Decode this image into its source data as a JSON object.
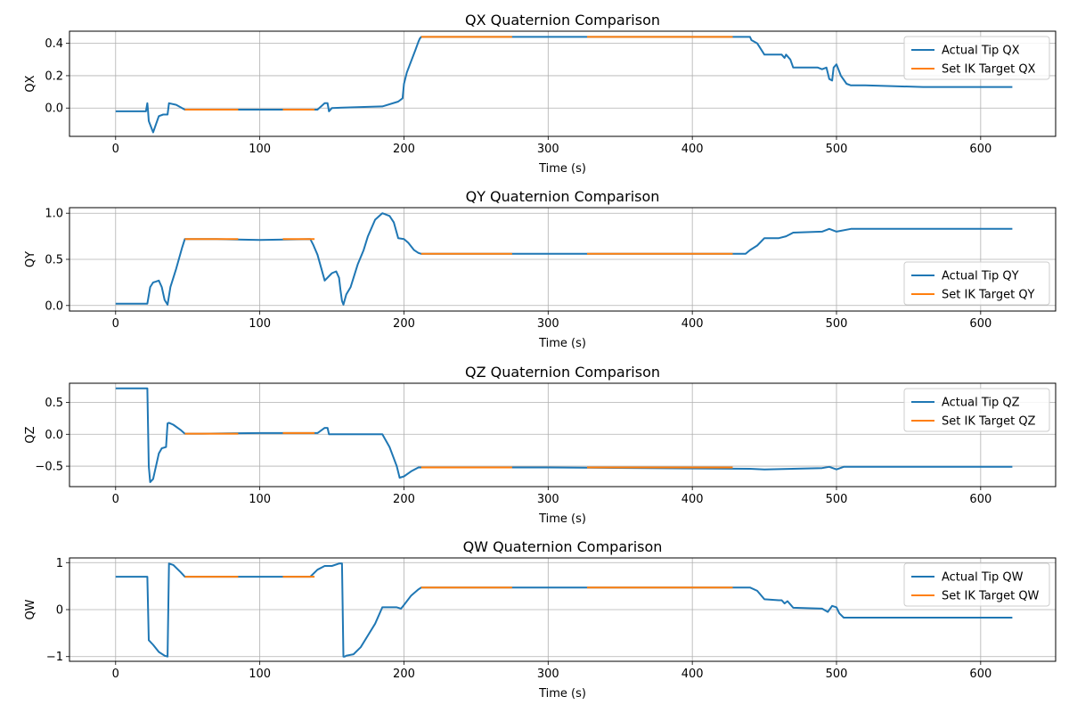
{
  "colors": {
    "actual": "#1f77b4",
    "target": "#ff7f0e",
    "grid": "#b0b0b0",
    "axis": "#000000"
  },
  "chart_data": [
    {
      "type": "line",
      "title": "QX Quaternion Comparison",
      "xlabel": "Time (s)",
      "ylabel": "QX",
      "xlim": [
        -32,
        652
      ],
      "ylim": [
        -0.175,
        0.475
      ],
      "xticks": [
        0,
        100,
        200,
        300,
        400,
        500,
        600
      ],
      "yticks": [
        0.0,
        0.2,
        0.4
      ],
      "ytick_labels": [
        "0.0",
        "0.2",
        "0.4"
      ],
      "grid": true,
      "legend_position": "top-right",
      "series": [
        {
          "name": "Actual Tip QX",
          "x": [
            0,
            21,
            22,
            22.5,
            23,
            26,
            30,
            33,
            36,
            37,
            42,
            48,
            60,
            100,
            140,
            145,
            147,
            148,
            150,
            185,
            196,
            199,
            200,
            202,
            208,
            210,
            211,
            212,
            260,
            300,
            440,
            441,
            445,
            450,
            462,
            464,
            465,
            468,
            470,
            487,
            490,
            493,
            495,
            497,
            498,
            500,
            503,
            507,
            510,
            520,
            560,
            622
          ],
          "y": [
            -0.02,
            -0.02,
            0.03,
            -0.02,
            -0.08,
            -0.15,
            -0.05,
            -0.04,
            -0.04,
            0.03,
            0.02,
            -0.01,
            -0.01,
            -0.01,
            -0.01,
            0.03,
            0.03,
            -0.02,
            0.0,
            0.01,
            0.04,
            0.06,
            0.15,
            0.22,
            0.36,
            0.41,
            0.43,
            0.44,
            0.44,
            0.44,
            0.44,
            0.42,
            0.4,
            0.33,
            0.33,
            0.31,
            0.33,
            0.3,
            0.25,
            0.25,
            0.24,
            0.25,
            0.18,
            0.17,
            0.25,
            0.27,
            0.2,
            0.15,
            0.14,
            0.14,
            0.13,
            0.13
          ]
        },
        {
          "name": "Set IK Target QX",
          "segments": [
            {
              "x": [
                48,
                85
              ],
              "y": [
                -0.01,
                -0.01
              ]
            },
            {
              "x": [
                116,
                138
              ],
              "y": [
                -0.01,
                -0.01
              ]
            },
            {
              "x": [
                212,
                275
              ],
              "y": [
                0.44,
                0.44
              ]
            },
            {
              "x": [
                327,
                428
              ],
              "y": [
                0.44,
                0.44
              ]
            }
          ]
        }
      ]
    },
    {
      "type": "line",
      "title": "QY Quaternion Comparison",
      "xlabel": "Time (s)",
      "ylabel": "QY",
      "xlim": [
        -32,
        652
      ],
      "ylim": [
        -0.06,
        1.06
      ],
      "xticks": [
        0,
        100,
        200,
        300,
        400,
        500,
        600
      ],
      "yticks": [
        0.0,
        0.5,
        1.0
      ],
      "ytick_labels": [
        "0.0",
        "0.5",
        "1.0"
      ],
      "grid": true,
      "legend_position": "bottom-right",
      "series": [
        {
          "name": "Actual Tip QY",
          "x": [
            0,
            22,
            24,
            26,
            28,
            30,
            32,
            34,
            36,
            38,
            42,
            46,
            48,
            55,
            70,
            100,
            135,
            137,
            140,
            145,
            150,
            153,
            155,
            156,
            157,
            158,
            160,
            163,
            168,
            172,
            175,
            180,
            185,
            190,
            193,
            196,
            200,
            203,
            207,
            210,
            212,
            250,
            300,
            437,
            440,
            445,
            450,
            460,
            465,
            470,
            490,
            495,
            500,
            510,
            560,
            622
          ],
          "y": [
            0.02,
            0.02,
            0.2,
            0.25,
            0.26,
            0.27,
            0.2,
            0.06,
            0.01,
            0.2,
            0.4,
            0.62,
            0.72,
            0.72,
            0.72,
            0.71,
            0.72,
            0.66,
            0.55,
            0.27,
            0.35,
            0.37,
            0.3,
            0.16,
            0.05,
            0.01,
            0.12,
            0.2,
            0.45,
            0.6,
            0.75,
            0.93,
            1.0,
            0.97,
            0.9,
            0.73,
            0.72,
            0.68,
            0.6,
            0.57,
            0.56,
            0.56,
            0.56,
            0.56,
            0.6,
            0.65,
            0.73,
            0.73,
            0.75,
            0.79,
            0.8,
            0.83,
            0.8,
            0.83,
            0.83,
            0.83
          ]
        },
        {
          "name": "Set IK Target QY",
          "segments": [
            {
              "x": [
                48,
                85
              ],
              "y": [
                0.72,
                0.72
              ]
            },
            {
              "x": [
                116,
                138
              ],
              "y": [
                0.72,
                0.72
              ]
            },
            {
              "x": [
                212,
                275
              ],
              "y": [
                0.56,
                0.56
              ]
            },
            {
              "x": [
                327,
                428
              ],
              "y": [
                0.56,
                0.56
              ]
            }
          ]
        }
      ]
    },
    {
      "type": "line",
      "title": "QZ Quaternion Comparison",
      "xlabel": "Time (s)",
      "ylabel": "QZ",
      "xlim": [
        -32,
        652
      ],
      "ylim": [
        -0.82,
        0.8
      ],
      "xticks": [
        0,
        100,
        200,
        300,
        400,
        500,
        600
      ],
      "yticks": [
        0.5,
        0.0,
        -0.5
      ],
      "ytick_labels": [
        "0.5",
        "0.0",
        "−0.5"
      ],
      "grid": true,
      "legend_position": "top-right",
      "series": [
        {
          "name": "Actual Tip QZ",
          "x": [
            0,
            22,
            23,
            24,
            26,
            30,
            32,
            35,
            36,
            37,
            40,
            45,
            48,
            60,
            100,
            140,
            145,
            147,
            148,
            150,
            185,
            190,
            195,
            197,
            200,
            205,
            210,
            212,
            250,
            300,
            440,
            450,
            490,
            495,
            500,
            505,
            510,
            622
          ],
          "y": [
            0.72,
            0.72,
            -0.5,
            -0.75,
            -0.7,
            -0.3,
            -0.22,
            -0.2,
            0.17,
            0.18,
            0.15,
            0.07,
            0.01,
            0.01,
            0.02,
            0.02,
            0.1,
            0.1,
            0.0,
            0.0,
            0.0,
            -0.2,
            -0.5,
            -0.68,
            -0.66,
            -0.58,
            -0.52,
            -0.52,
            -0.52,
            -0.52,
            -0.54,
            -0.55,
            -0.53,
            -0.51,
            -0.55,
            -0.51,
            -0.51,
            -0.51
          ]
        },
        {
          "name": "Set IK Target QZ",
          "segments": [
            {
              "x": [
                48,
                85
              ],
              "y": [
                0.01,
                0.01
              ]
            },
            {
              "x": [
                116,
                138
              ],
              "y": [
                0.02,
                0.02
              ]
            },
            {
              "x": [
                212,
                275
              ],
              "y": [
                -0.52,
                -0.52
              ]
            },
            {
              "x": [
                327,
                428
              ],
              "y": [
                -0.52,
                -0.52
              ]
            }
          ]
        }
      ]
    },
    {
      "type": "line",
      "title": "QW Quaternion Comparison",
      "xlabel": "Time (s)",
      "ylabel": "QW",
      "xlim": [
        -32,
        652
      ],
      "ylim": [
        -1.1,
        1.1
      ],
      "xticks": [
        0,
        100,
        200,
        300,
        400,
        500,
        600
      ],
      "yticks": [
        1,
        0,
        -1
      ],
      "ytick_labels": [
        "1",
        "0",
        "−1"
      ],
      "grid": true,
      "legend_position": "top-right",
      "series": [
        {
          "name": "Actual Tip QW",
          "x": [
            0,
            22,
            23,
            26,
            30,
            34,
            36,
            37,
            40,
            45,
            48,
            60,
            100,
            135,
            140,
            145,
            150,
            155,
            157,
            158,
            159,
            160,
            165,
            170,
            175,
            180,
            185,
            195,
            198,
            200,
            205,
            210,
            212,
            250,
            300,
            440,
            445,
            450,
            460,
            462,
            464,
            466,
            470,
            490,
            494,
            497,
            500,
            502,
            505,
            510,
            560,
            622
          ],
          "y": [
            0.7,
            0.7,
            -0.65,
            -0.75,
            -0.9,
            -0.98,
            -1.0,
            0.98,
            0.95,
            0.8,
            0.7,
            0.7,
            0.7,
            0.7,
            0.85,
            0.93,
            0.93,
            0.98,
            0.98,
            -1.0,
            -1.0,
            -0.98,
            -0.95,
            -0.8,
            -0.55,
            -0.3,
            0.05,
            0.05,
            0.02,
            0.1,
            0.3,
            0.43,
            0.47,
            0.47,
            0.47,
            0.47,
            0.4,
            0.22,
            0.2,
            0.2,
            0.13,
            0.18,
            0.04,
            0.02,
            -0.05,
            0.08,
            0.05,
            -0.08,
            -0.17,
            -0.17,
            -0.17,
            -0.17
          ]
        },
        {
          "name": "Set IK Target QW",
          "segments": [
            {
              "x": [
                48,
                85
              ],
              "y": [
                0.7,
                0.7
              ]
            },
            {
              "x": [
                116,
                138
              ],
              "y": [
                0.7,
                0.7
              ]
            },
            {
              "x": [
                212,
                275
              ],
              "y": [
                0.47,
                0.47
              ]
            },
            {
              "x": [
                327,
                428
              ],
              "y": [
                0.47,
                0.47
              ]
            }
          ]
        }
      ]
    }
  ]
}
